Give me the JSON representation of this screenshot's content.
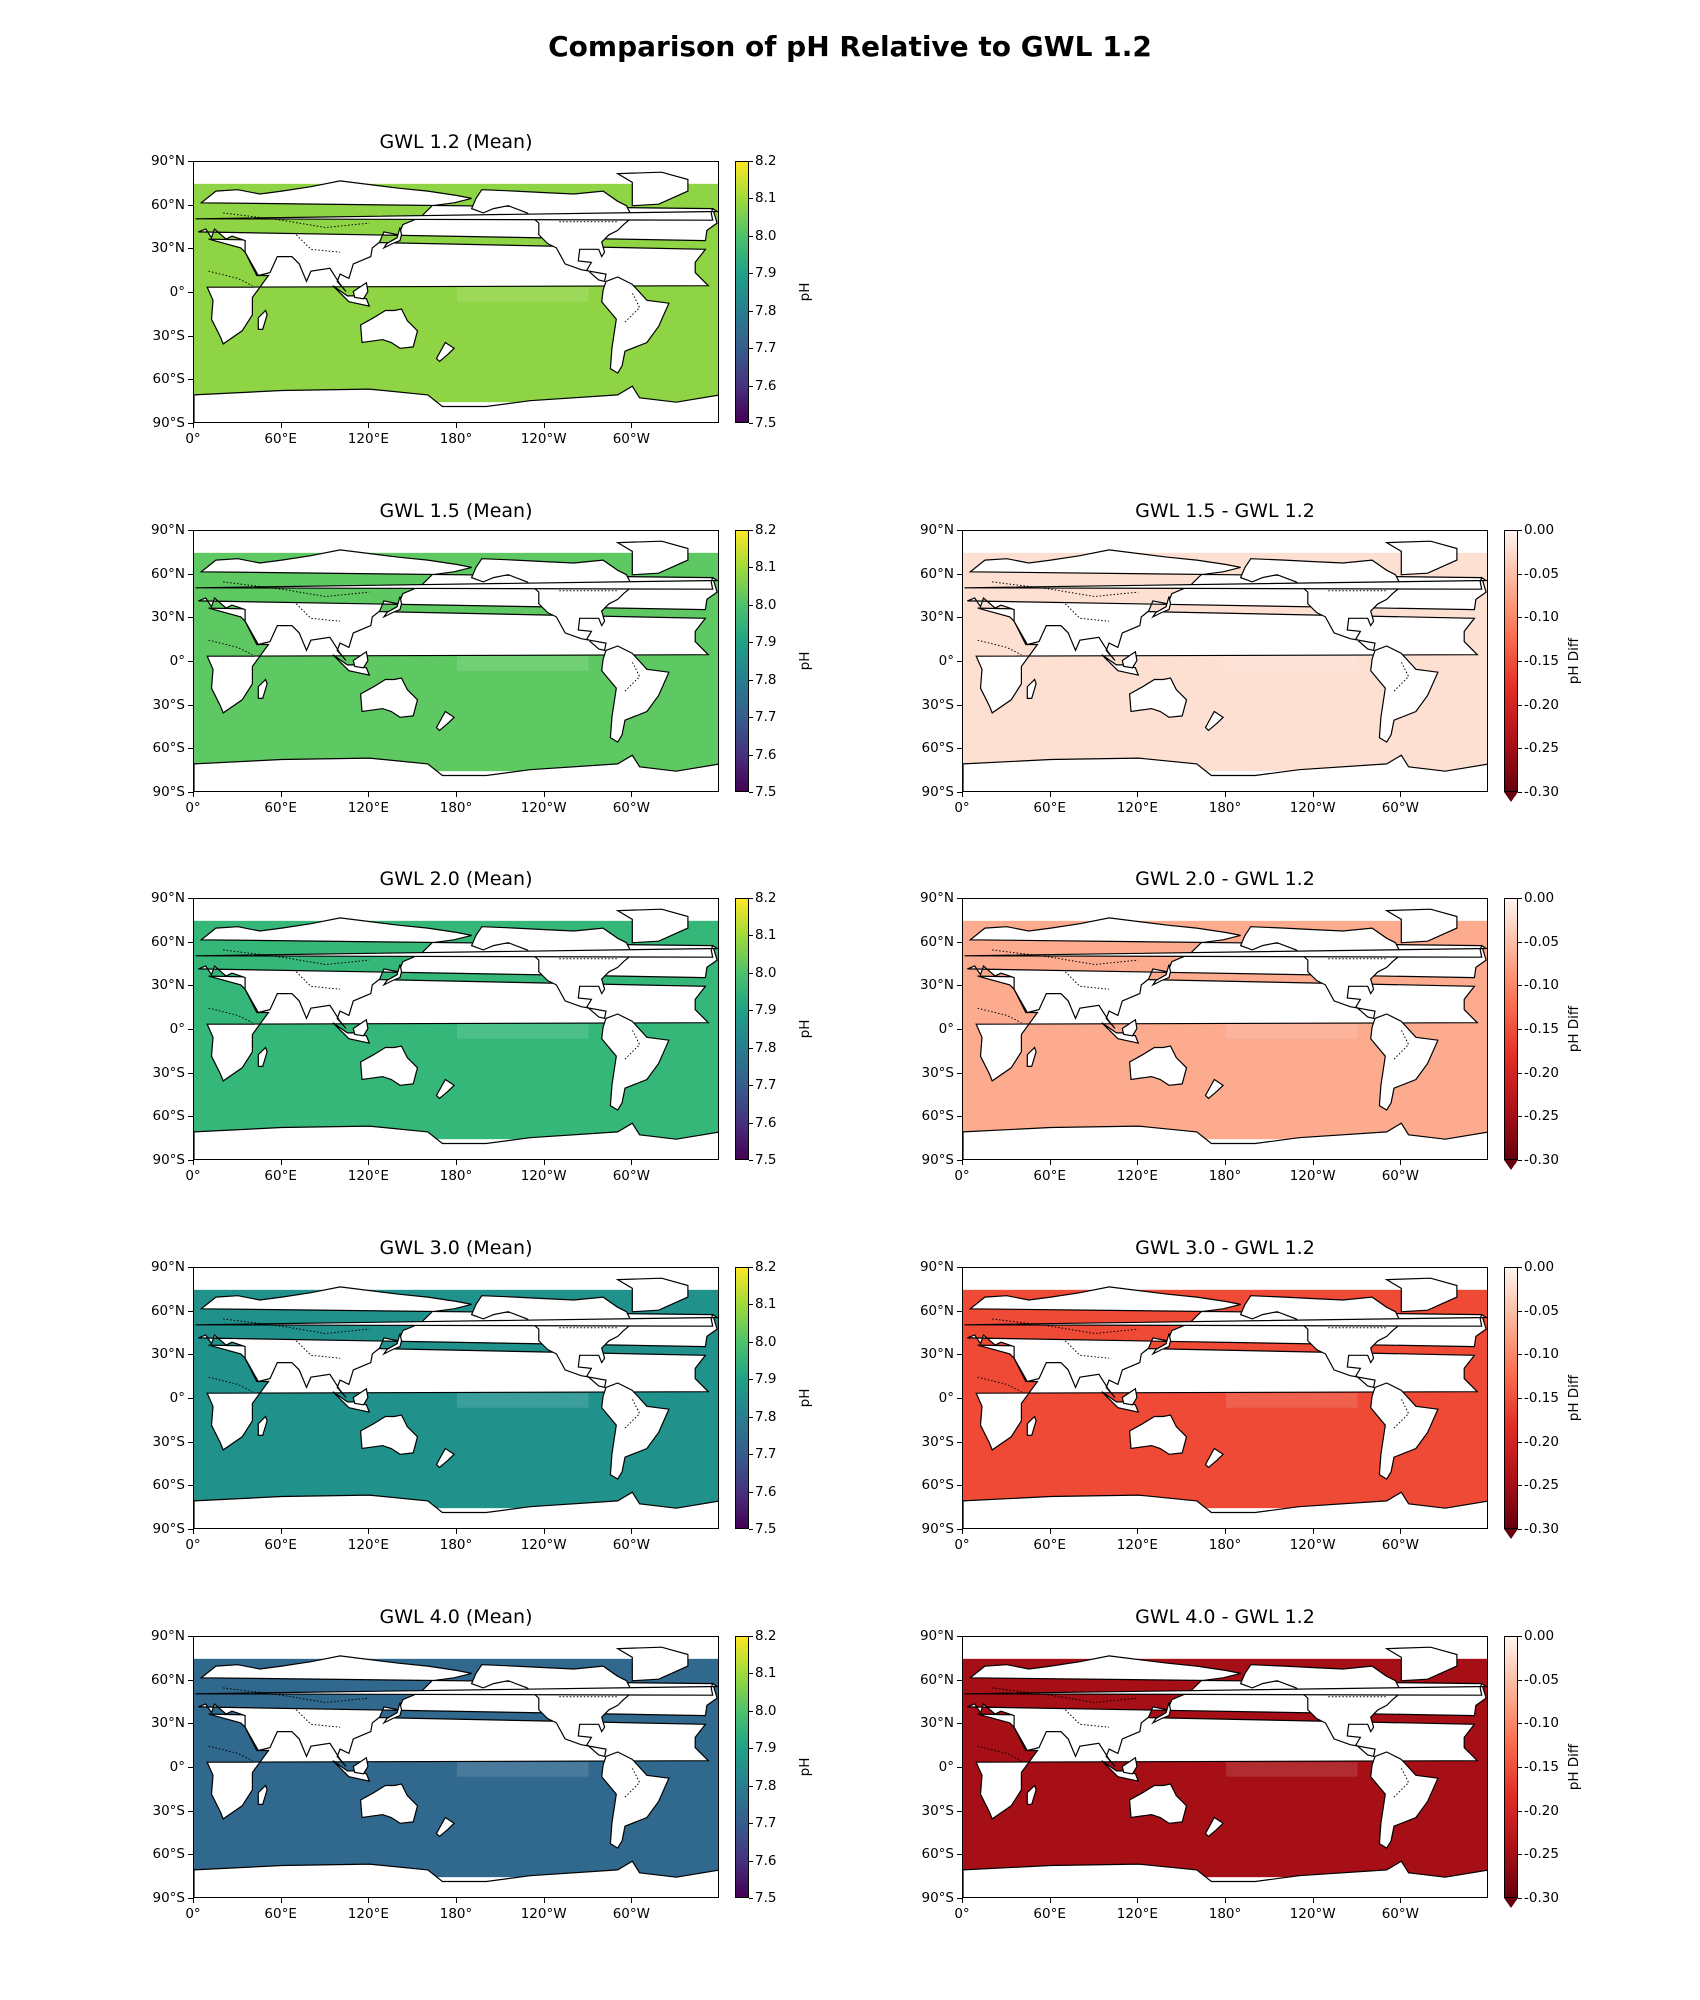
{
  "figure": {
    "title": "Comparison of pH Relative to GWL 1.2"
  },
  "axes_common": {
    "lat_ticks": [
      "90°N",
      "60°N",
      "30°N",
      "0°",
      "30°S",
      "60°S",
      "90°S"
    ],
    "lon_ticks": [
      "0°",
      "60°E",
      "120°E",
      "180°",
      "120°W",
      "60°W"
    ]
  },
  "colorbars": {
    "ph": {
      "label": "pH",
      "ticks": [
        "8.2",
        "8.1",
        "8.0",
        "7.9",
        "7.8",
        "7.7",
        "7.6",
        "7.5"
      ],
      "colormap": "viridis",
      "range": [
        7.5,
        8.2
      ]
    },
    "diff": {
      "label": "pH Diff",
      "ticks": [
        "0.00",
        "-0.05",
        "-0.10",
        "-0.15",
        "-0.20",
        "-0.25",
        "-0.30"
      ],
      "colormap": "Reds_r",
      "range": [
        -0.3,
        0.0
      ],
      "extend": "min"
    }
  },
  "chart_data": [
    {
      "type": "heatmap",
      "title": "GWL 1.2 (Mean)",
      "variable": "pH",
      "mean_value": 8.05,
      "ocean_color": "#8fd444",
      "column": "left",
      "row": 0
    },
    {
      "type": "heatmap",
      "title": "GWL 1.5 (Mean)",
      "variable": "pH",
      "mean_value": 8.02,
      "ocean_color": "#5ec962",
      "column": "left",
      "row": 1
    },
    {
      "type": "heatmap",
      "title": "GWL 2.0 (Mean)",
      "variable": "pH",
      "mean_value": 7.96,
      "ocean_color": "#35b779",
      "column": "left",
      "row": 2
    },
    {
      "type": "heatmap",
      "title": "GWL 3.0 (Mean)",
      "variable": "pH",
      "mean_value": 7.86,
      "ocean_color": "#21918c",
      "column": "left",
      "row": 3
    },
    {
      "type": "heatmap",
      "title": "GWL 4.0 (Mean)",
      "variable": "pH",
      "mean_value": 7.76,
      "ocean_color": "#31688e",
      "column": "left",
      "row": 4
    },
    {
      "type": "heatmap",
      "title": "GWL 1.5 - GWL 1.2",
      "variable": "pH Diff",
      "mean_value": -0.03,
      "ocean_color": "#fde0d2",
      "column": "right",
      "row": 1
    },
    {
      "type": "heatmap",
      "title": "GWL 2.0 - GWL 1.2",
      "variable": "pH Diff",
      "mean_value": -0.09,
      "ocean_color": "#fcab8f",
      "column": "right",
      "row": 2
    },
    {
      "type": "heatmap",
      "title": "GWL 3.0 - GWL 1.2",
      "variable": "pH Diff",
      "mean_value": -0.2,
      "ocean_color": "#ee4a36",
      "column": "right",
      "row": 3
    },
    {
      "type": "heatmap",
      "title": "GWL 4.0 - GWL 1.2",
      "variable": "pH Diff",
      "mean_value": -0.29,
      "ocean_color": "#a50f15",
      "column": "right",
      "row": 4
    }
  ]
}
